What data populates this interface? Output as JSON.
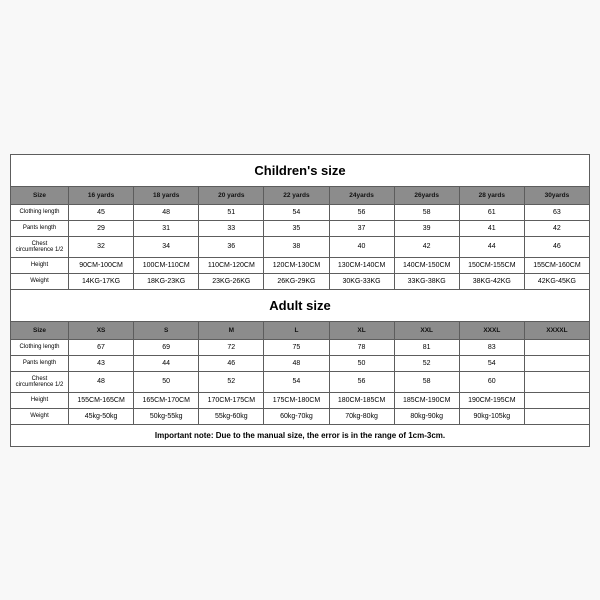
{
  "children": {
    "title": "Children's size",
    "headers": [
      "Size",
      "16 yards",
      "18 yards",
      "20 yards",
      "22 yards",
      "24yards",
      "26yards",
      "28 yards",
      "30yards"
    ],
    "rows": [
      {
        "label": "Clothing length",
        "cells": [
          "45",
          "48",
          "51",
          "54",
          "56",
          "58",
          "61",
          "63"
        ]
      },
      {
        "label": "Pants length",
        "cells": [
          "29",
          "31",
          "33",
          "35",
          "37",
          "39",
          "41",
          "42"
        ]
      },
      {
        "label": "Chest circumference 1/2",
        "cells": [
          "32",
          "34",
          "36",
          "38",
          "40",
          "42",
          "44",
          "46"
        ]
      },
      {
        "label": "Height",
        "cells": [
          "90CM-100CM",
          "100CM-110CM",
          "110CM-120CM",
          "120CM-130CM",
          "130CM-140CM",
          "140CM-150CM",
          "150CM-155CM",
          "155CM-160CM"
        ]
      },
      {
        "label": "Weight",
        "cells": [
          "14KG-17KG",
          "18KG-23KG",
          "23KG-26KG",
          "26KG-29KG",
          "30KG-33KG",
          "33KG-38KG",
          "38KG-42KG",
          "42KG-45KG"
        ]
      }
    ]
  },
  "adult": {
    "title": "Adult size",
    "headers": [
      "Size",
      "XS",
      "S",
      "M",
      "L",
      "XL",
      "XXL",
      "XXXL",
      "XXXXL"
    ],
    "rows": [
      {
        "label": "Clothing length",
        "cells": [
          "67",
          "69",
          "72",
          "75",
          "78",
          "81",
          "83",
          ""
        ]
      },
      {
        "label": "Pants length",
        "cells": [
          "43",
          "44",
          "46",
          "48",
          "50",
          "52",
          "54",
          ""
        ]
      },
      {
        "label": "Chest circumference 1/2",
        "cells": [
          "48",
          "50",
          "52",
          "54",
          "56",
          "58",
          "60",
          ""
        ]
      },
      {
        "label": "Height",
        "cells": [
          "155CM-165CM",
          "165CM-170CM",
          "170CM-175CM",
          "175CM-180CM",
          "180CM-185CM",
          "185CM-190CM",
          "190CM-195CM",
          ""
        ]
      },
      {
        "label": "Weight",
        "cells": [
          "45kg-50kg",
          "50kg-55kg",
          "55kg-60kg",
          "60kg-70kg",
          "70kg-80kg",
          "80kg-90kg",
          "90kg-105kg",
          ""
        ]
      }
    ]
  },
  "note": "Important note: Due to the manual size, the error is in the range of 1cm-3cm.",
  "style": {
    "border_color": "#5d5d5d",
    "header_bg": "#8c8c8c",
    "page_bg": "#f8f8f8",
    "sheet_bg": "#ffffff",
    "title_fontsize": 13,
    "cell_fontsize": 7,
    "header_fontsize": 6.5,
    "label_fontsize": 6,
    "note_fontsize": 8,
    "cols": 9
  }
}
